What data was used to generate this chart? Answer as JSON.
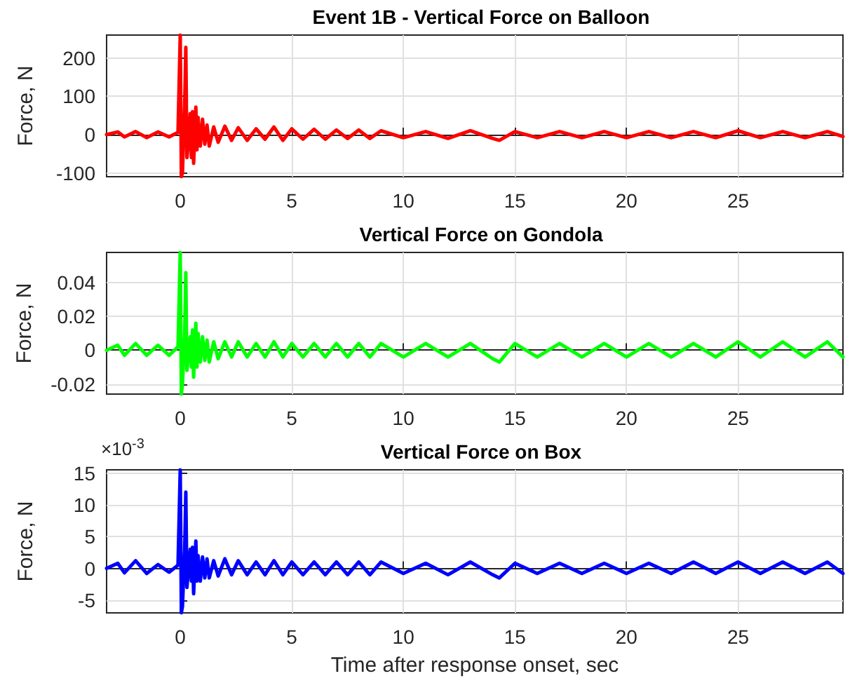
{
  "chart_data": [
    {
      "type": "line",
      "title": "Event 1B - Vertical Force on Balloon",
      "ylabel": "Force, N",
      "grid": true,
      "marker": "none",
      "line_style": "solid",
      "x": [
        -3.3,
        -2.8,
        -2.5,
        -2,
        -1.5,
        -1,
        -0.5,
        -0.1,
        0,
        0.05,
        0.1,
        0.2,
        0.25,
        0.3,
        0.35,
        0.45,
        0.5,
        0.55,
        0.6,
        0.7,
        0.75,
        0.8,
        0.9,
        1,
        1.1,
        1.2,
        1.3,
        1.5,
        1.7,
        2,
        2.3,
        2.6,
        3,
        3.4,
        3.8,
        4.2,
        4.6,
        5,
        5.5,
        6,
        6.5,
        7,
        7.5,
        8,
        8.5,
        9,
        10,
        11,
        12,
        13,
        14,
        14.3,
        15,
        16,
        17,
        18,
        19,
        20,
        21,
        22,
        23,
        24,
        25,
        26,
        27,
        28,
        29,
        29.7
      ],
      "series": [
        {
          "color": "#ff0000",
          "values": [
            0,
            7,
            -6,
            8,
            -8,
            7,
            -6,
            6,
            260,
            -110,
            -100,
            80,
            228,
            -60,
            -30,
            55,
            -60,
            60,
            -75,
            72,
            -40,
            45,
            -30,
            40,
            -25,
            25,
            -30,
            20,
            -20,
            22,
            -15,
            18,
            -15,
            15,
            -12,
            20,
            -15,
            15,
            -12,
            14,
            -12,
            12,
            -10,
            12,
            -10,
            10,
            -8,
            8,
            -10,
            10,
            -10,
            -15,
            8,
            -8,
            8,
            -8,
            8,
            -8,
            8,
            -8,
            8,
            -8,
            10,
            -8,
            8,
            -8,
            8,
            -5
          ]
        }
      ],
      "xlim": [
        -3.3,
        29.7
      ],
      "xticks": [
        0,
        5,
        10,
        15,
        20,
        25
      ],
      "ylim": [
        -110,
        260
      ],
      "yticks": [
        -100,
        0,
        100,
        200
      ]
    },
    {
      "type": "line",
      "title": "Vertical Force on Gondola",
      "ylabel": "Force, N",
      "grid": true,
      "marker": "none",
      "line_style": "solid",
      "x": [
        -3.3,
        -2.8,
        -2.5,
        -2,
        -1.5,
        -1,
        -0.5,
        -0.1,
        0,
        0.05,
        0.1,
        0.2,
        0.25,
        0.3,
        0.35,
        0.45,
        0.5,
        0.55,
        0.6,
        0.7,
        0.75,
        0.8,
        0.9,
        1,
        1.1,
        1.2,
        1.3,
        1.5,
        1.7,
        2,
        2.3,
        2.6,
        3,
        3.4,
        3.8,
        4.2,
        4.6,
        5,
        5.5,
        6,
        6.5,
        7,
        7.5,
        8,
        8.5,
        9,
        10,
        11,
        12,
        13,
        14,
        14.3,
        15,
        16,
        17,
        18,
        19,
        20,
        21,
        22,
        23,
        24,
        25,
        26,
        27,
        28,
        29,
        29.7
      ],
      "series": [
        {
          "color": "#00ff00",
          "values": [
            0,
            0.003,
            -0.003,
            0.004,
            -0.003,
            0.003,
            -0.003,
            0.002,
            0.058,
            -0.026,
            -0.02,
            0.01,
            0.046,
            -0.012,
            -0.005,
            0.008,
            -0.01,
            0.012,
            -0.016,
            0.016,
            -0.01,
            0.01,
            -0.007,
            0.008,
            -0.006,
            0.006,
            -0.007,
            0.005,
            -0.005,
            0.005,
            -0.004,
            0.005,
            -0.004,
            0.004,
            -0.004,
            0.005,
            -0.004,
            0.004,
            -0.004,
            0.004,
            -0.004,
            0.004,
            -0.004,
            0.004,
            -0.004,
            0.004,
            -0.004,
            0.004,
            -0.004,
            0.004,
            -0.005,
            -0.007,
            0.004,
            -0.004,
            0.004,
            -0.004,
            0.004,
            -0.004,
            0.004,
            -0.004,
            0.004,
            -0.004,
            0.005,
            -0.004,
            0.005,
            -0.004,
            0.005,
            -0.004
          ]
        }
      ],
      "xlim": [
        -3.3,
        29.7
      ],
      "xticks": [
        0,
        5,
        10,
        15,
        20,
        25
      ],
      "ylim": [
        -0.026,
        0.058
      ],
      "yticks": [
        -0.02,
        0,
        0.02,
        0.04
      ]
    },
    {
      "type": "line",
      "title": "Vertical Force on Box",
      "ylabel": "Force, N",
      "xlabel": "Time after response onset, sec",
      "annotations": [
        "×10$^{-3}$"
      ],
      "grid": true,
      "marker": "none",
      "line_style": "solid",
      "x": [
        -3.3,
        -2.8,
        -2.5,
        -2,
        -1.5,
        -1,
        -0.5,
        -0.1,
        0,
        0.05,
        0.1,
        0.2,
        0.25,
        0.3,
        0.35,
        0.45,
        0.5,
        0.55,
        0.6,
        0.7,
        0.75,
        0.8,
        0.9,
        1,
        1.1,
        1.2,
        1.3,
        1.5,
        1.7,
        2,
        2.3,
        2.6,
        3,
        3.4,
        3.8,
        4.2,
        4.6,
        5,
        5.5,
        6,
        6.5,
        7,
        7.5,
        8,
        8.5,
        9,
        10,
        11,
        12,
        13,
        14,
        14.3,
        15,
        16,
        17,
        18,
        19,
        20,
        21,
        22,
        23,
        24,
        25,
        26,
        27,
        28,
        29,
        29.7
      ],
      "series": [
        {
          "color": "#0000ff",
          "values": [
            0,
            0.8,
            -0.7,
            1.2,
            -0.8,
            0.6,
            -0.6,
            0.5,
            15.5,
            -7,
            -6,
            3,
            12,
            -3,
            -1,
            3,
            -2,
            3.3,
            -4,
            4.3,
            -2,
            2,
            -2,
            1.8,
            -1.5,
            1.5,
            -1.5,
            1.2,
            -1.2,
            1.5,
            -1,
            1.2,
            -1,
            1,
            -1,
            1.2,
            -1,
            1,
            -1,
            1,
            -1,
            1,
            -1,
            1,
            -1,
            1,
            -0.8,
            0.8,
            -1,
            1,
            -1,
            -1.5,
            0.8,
            -0.8,
            0.8,
            -0.8,
            0.8,
            -0.8,
            0.8,
            -0.8,
            1,
            -0.8,
            1,
            -0.8,
            1,
            -0.8,
            1,
            -0.8
          ]
        }
      ],
      "xlim": [
        -3.3,
        29.7
      ],
      "xticks": [
        0,
        5,
        10,
        15,
        20,
        25
      ],
      "ylim": [
        -7,
        15.5
      ],
      "yticks": [
        -5,
        0,
        5,
        10,
        15
      ]
    }
  ]
}
